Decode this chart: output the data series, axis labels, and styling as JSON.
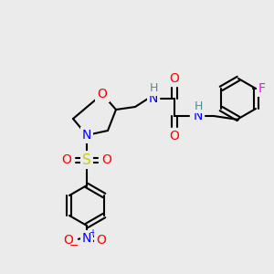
{
  "bg_color": "#ebebeb",
  "atom_colors": {
    "C": "#000000",
    "H": "#4a9090",
    "N": "#0000ff",
    "O": "#ff0000",
    "S": "#cccc00",
    "F": "#ff00ff",
    "minus": "#ff0000",
    "plus": "#0000ff"
  },
  "title": "",
  "fig_width": 3.0,
  "fig_height": 3.0,
  "dpi": 100
}
